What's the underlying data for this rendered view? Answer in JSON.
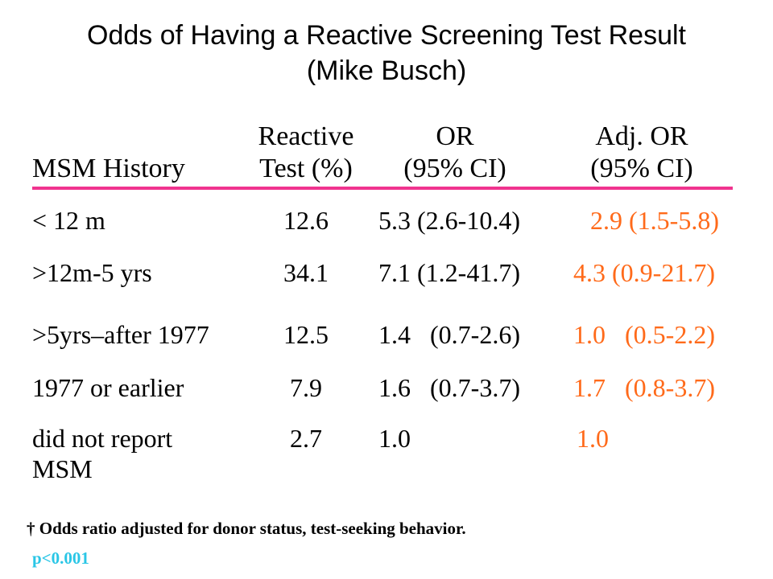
{
  "title_line1": "Odds of Having a Reactive Screening Test Result",
  "title_line2": "(Mike Busch)",
  "headers": {
    "msm": "MSM History",
    "reactive_line1": "Reactive",
    "reactive_line2": "Test (%)",
    "or_line1": "OR",
    "or_line2": "(95% CI)",
    "adj_line1": "Adj. OR",
    "adj_line2": "(95% CI)"
  },
  "colors": {
    "rule": "#f0348f",
    "adjusted": "#ff6a1a",
    "pvalue": "#2ac6e6"
  },
  "rows": [
    {
      "label": "< 12 m",
      "reactive": "12.6",
      "or": "5.3 (2.6-10.4)",
      "adj": "2.9 (1.5-5.8)"
    },
    {
      "label": ">12m-5 yrs",
      "reactive": "34.1",
      "or": "7.1 (1.2-41.7)",
      "adj": "4.3 (0.9-21.7)"
    },
    {
      "label": ">5yrs–after 1977",
      "reactive": "12.5",
      "or": "1.4   (0.7-2.6)",
      "adj": "1.0   (0.5-2.2)"
    },
    {
      "label": "1977 or earlier",
      "reactive": "7.9",
      "or": "1.6   (0.7-3.7)",
      "adj": "1.7   (0.8-3.7)"
    },
    {
      "label": "did not report",
      "label2": "MSM",
      "reactive": "2.7",
      "or": "1.0",
      "adj": "1.0"
    }
  ],
  "footnote": "† Odds ratio adjusted for donor status, test-seeking behavior.",
  "pvalue": "p<0.001"
}
